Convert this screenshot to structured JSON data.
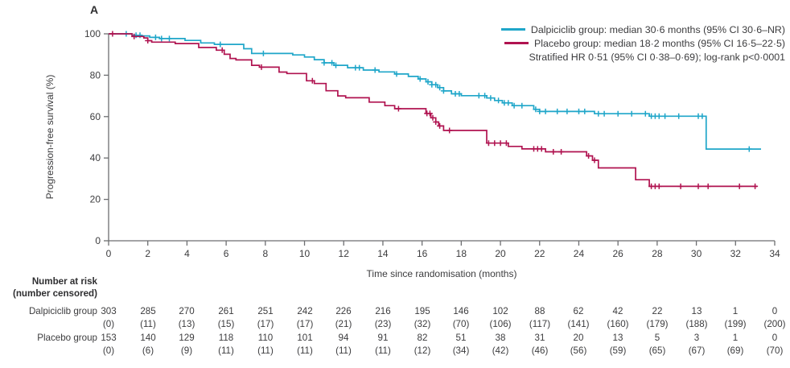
{
  "panel_label": "A",
  "axes": {
    "y_label": "Progression-free survival (%)",
    "x_label": "Time since randomisation (months)",
    "y_ticks": [
      0,
      20,
      40,
      60,
      80,
      100
    ],
    "x_ticks": [
      0,
      2,
      4,
      6,
      8,
      10,
      12,
      14,
      16,
      18,
      20,
      22,
      24,
      26,
      28,
      30,
      32,
      34
    ],
    "xlim": [
      0,
      34
    ],
    "ylim": [
      0,
      100
    ]
  },
  "legend": {
    "dalpiciclib": "Dalpiciclib group: median 30·6 months (95% CI 30·6–NR)",
    "placebo": "Placebo group: median 18·2 months (95% CI 16·5–22·5)",
    "hr_text": "Stratified HR 0·51 (95% CI 0·38–0·69); log-rank p<0·0001"
  },
  "colors": {
    "dalpiciclib": "#1FA6C9",
    "placebo": "#B01350",
    "axis": "#6d6e71",
    "text": "#3c3c3e"
  },
  "chart_data": {
    "type": "line",
    "subtype": "kaplan-meier-step",
    "title": "",
    "xlabel": "Time since randomisation (months)",
    "ylabel": "Progression-free survival (%)",
    "xlim": [
      0,
      34
    ],
    "ylim": [
      0,
      100
    ],
    "grid": false,
    "legend_position": "top-right",
    "series": [
      {
        "name": "Dalpiciclib group",
        "color": "#1FA6C9",
        "median_months": "30·6",
        "ci": "30·6–NR",
        "steps": [
          [
            0,
            100
          ],
          [
            1.2,
            99.3
          ],
          [
            1.7,
            99
          ],
          [
            2.1,
            98.3
          ],
          [
            2.6,
            97.7
          ],
          [
            3.9,
            96.8
          ],
          [
            4.7,
            95.6
          ],
          [
            5.4,
            94.9
          ],
          [
            6.9,
            92.8
          ],
          [
            7.3,
            90.5
          ],
          [
            9.4,
            89.8
          ],
          [
            10,
            88.8
          ],
          [
            10.5,
            87.5
          ],
          [
            11,
            86
          ],
          [
            11.5,
            84.8
          ],
          [
            12.2,
            83.6
          ],
          [
            13,
            82.5
          ],
          [
            13.8,
            81.6
          ],
          [
            14.6,
            80.6
          ],
          [
            15.3,
            79.4
          ],
          [
            15.8,
            78.2
          ],
          [
            16.2,
            76.8
          ],
          [
            16.5,
            75.4
          ],
          [
            16.8,
            74
          ],
          [
            17.1,
            72.4
          ],
          [
            17.5,
            71
          ],
          [
            18,
            70.1
          ],
          [
            19.3,
            69
          ],
          [
            19.7,
            67.8
          ],
          [
            20.1,
            66.6
          ],
          [
            20.6,
            65.3
          ],
          [
            21.7,
            63.5
          ],
          [
            22,
            62.5
          ],
          [
            24.8,
            61.4
          ],
          [
            27.6,
            60.2
          ],
          [
            30.5,
            44.3
          ],
          [
            33.3,
            44.3
          ]
        ],
        "censor_months": [
          0.9,
          1.4,
          1.6,
          2.4,
          2.7,
          3.1,
          5.7,
          7.9,
          11,
          11.4,
          11.6,
          12.6,
          12.8,
          13.6,
          14.7,
          15.9,
          16.3,
          16.5,
          16.7,
          16.9,
          17.1,
          17.7,
          17.9,
          18.9,
          19.2,
          19.5,
          19.9,
          20.2,
          20.4,
          20.7,
          21.1,
          21.8,
          22,
          22.3,
          22.9,
          23.4,
          24,
          24.3,
          25,
          25.3,
          26,
          26.7,
          27.4,
          27.7,
          27.9,
          28.1,
          28.4,
          29.1,
          30.1,
          30.3,
          32.7
        ]
      },
      {
        "name": "Placebo group",
        "color": "#B01350",
        "median_months": "18·2",
        "ci": "16·5–22·5",
        "steps": [
          [
            0,
            100
          ],
          [
            1.2,
            98.7
          ],
          [
            1.8,
            98
          ],
          [
            2,
            96.7
          ],
          [
            2.2,
            96
          ],
          [
            3.4,
            95.3
          ],
          [
            4.6,
            93.4
          ],
          [
            5.5,
            92.1
          ],
          [
            5.9,
            90.1
          ],
          [
            6.2,
            88.1
          ],
          [
            6.5,
            87.4
          ],
          [
            7.3,
            84.8
          ],
          [
            7.7,
            83.9
          ],
          [
            8.7,
            81.5
          ],
          [
            9.1,
            80.8
          ],
          [
            10.1,
            77.3
          ],
          [
            10.5,
            76
          ],
          [
            11.1,
            72.5
          ],
          [
            11.7,
            70
          ],
          [
            12.1,
            69.1
          ],
          [
            13.3,
            67
          ],
          [
            14.1,
            65.3
          ],
          [
            14.6,
            63.8
          ],
          [
            16.2,
            61.5
          ],
          [
            16.45,
            59.4
          ],
          [
            16.7,
            57.4
          ],
          [
            16.85,
            55.5
          ],
          [
            17.1,
            53.3
          ],
          [
            19.3,
            47.2
          ],
          [
            20.4,
            45.6
          ],
          [
            21.1,
            44.4
          ],
          [
            22.3,
            43
          ],
          [
            24.4,
            41
          ],
          [
            24.7,
            38.9
          ],
          [
            25,
            35.2
          ],
          [
            26.9,
            29.5
          ],
          [
            27.6,
            26.3
          ],
          [
            33.1,
            26.3
          ]
        ],
        "censor_months": [
          0.2,
          1.3,
          2,
          5.8,
          7.8,
          10.4,
          14.8,
          16.25,
          16.4,
          16.55,
          16.7,
          16.9,
          17.4,
          19.4,
          19.7,
          20,
          20.3,
          21.7,
          21.9,
          22.1,
          22.7,
          23.1,
          24.5,
          24.8,
          27.7,
          27.9,
          28.1,
          29.2,
          30.1,
          30.6,
          32.2,
          33
        ]
      }
    ]
  },
  "risk_table": {
    "title": "Number at risk",
    "subtitle": "(number censored)",
    "months": [
      0,
      2,
      4,
      6,
      8,
      10,
      12,
      14,
      16,
      18,
      20,
      22,
      24,
      26,
      28,
      30,
      32,
      34
    ],
    "rows": [
      {
        "label": "Dalpiciclib group",
        "at_risk": [
          303,
          285,
          270,
          261,
          251,
          242,
          226,
          216,
          195,
          146,
          102,
          88,
          62,
          42,
          22,
          13,
          1,
          0
        ],
        "censored": [
          0,
          11,
          13,
          15,
          17,
          17,
          21,
          23,
          32,
          70,
          106,
          117,
          141,
          160,
          179,
          188,
          199,
          200
        ]
      },
      {
        "label": "Placebo group",
        "at_risk": [
          153,
          140,
          129,
          118,
          110,
          101,
          94,
          91,
          82,
          51,
          38,
          31,
          20,
          13,
          5,
          3,
          1,
          0
        ],
        "censored": [
          0,
          6,
          9,
          11,
          11,
          11,
          11,
          11,
          12,
          34,
          42,
          46,
          56,
          59,
          65,
          67,
          69,
          70
        ]
      }
    ]
  }
}
